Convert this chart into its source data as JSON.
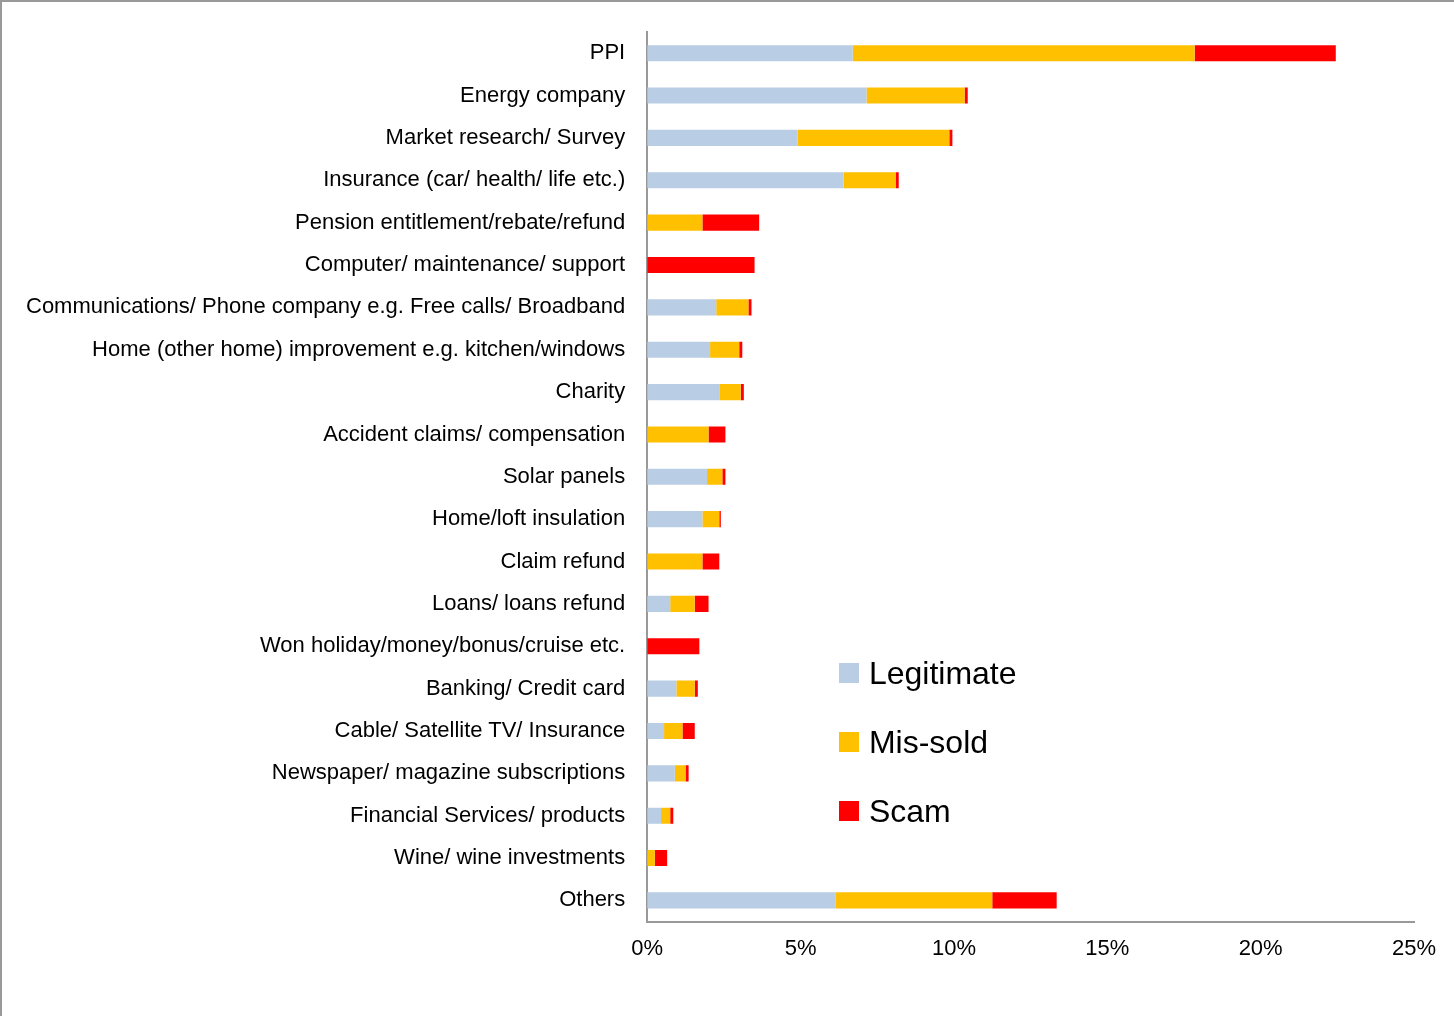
{
  "chart_data": {
    "type": "bar",
    "orientation": "horizontal",
    "stacked": true,
    "categories": [
      "PPI",
      "Energy company",
      "Market research/ Survey",
      "Insurance (car/ health/ life etc.)",
      "Pension entitlement/rebate/refund",
      "Computer/ maintenance/ support",
      "Communications/ Phone company e.g. Free calls/ Broadband",
      "Home (other home) improvement e.g. kitchen/windows",
      "Charity",
      "Accident claims/ compensation",
      "Solar panels",
      "Home/loft insulation",
      "Claim refund",
      "Loans/ loans refund",
      "Won holiday/money/bonus/cruise etc.",
      "Banking/ Credit card",
      "Cable/ Satellite TV/ Insurance",
      "Newspaper/ magazine subscriptions",
      "Financial Services/ products",
      "Wine/ wine investments",
      "Others"
    ],
    "series": [
      {
        "name": "Legitimate",
        "color": "#b9cde5",
        "values": [
          6.7,
          7.15,
          4.9,
          6.4,
          0,
          0,
          2.25,
          2.05,
          2.35,
          0,
          1.95,
          1.8,
          0,
          0.75,
          0,
          0.95,
          0.55,
          0.9,
          0.45,
          0,
          6.15
        ]
      },
      {
        "name": "Mis-sold",
        "color": "#ffc000",
        "values": [
          11.15,
          3.2,
          4.95,
          1.7,
          1.8,
          0,
          1.05,
          0.95,
          0.7,
          2.0,
          0.5,
          0.55,
          1.8,
          0.8,
          0,
          0.6,
          0.6,
          0.35,
          0.3,
          0.25,
          5.1
        ]
      },
      {
        "name": "Scam",
        "color": "#ff0000",
        "values": [
          4.6,
          0.1,
          0.1,
          0.1,
          1.85,
          3.5,
          0.1,
          0.1,
          0.1,
          0.55,
          0.1,
          0.05,
          0.55,
          0.45,
          1.7,
          0.1,
          0.4,
          0.1,
          0.1,
          0.4,
          2.1
        ]
      }
    ],
    "xlim": [
      0,
      25
    ],
    "xticks": [
      {
        "value": 0,
        "label": "0%"
      },
      {
        "value": 5,
        "label": "5%"
      },
      {
        "value": 10,
        "label": "10%"
      },
      {
        "value": 15,
        "label": "15%"
      },
      {
        "value": 20,
        "label": "20%"
      },
      {
        "value": 25,
        "label": "25%"
      }
    ],
    "grid": false,
    "legend": "bottom"
  }
}
